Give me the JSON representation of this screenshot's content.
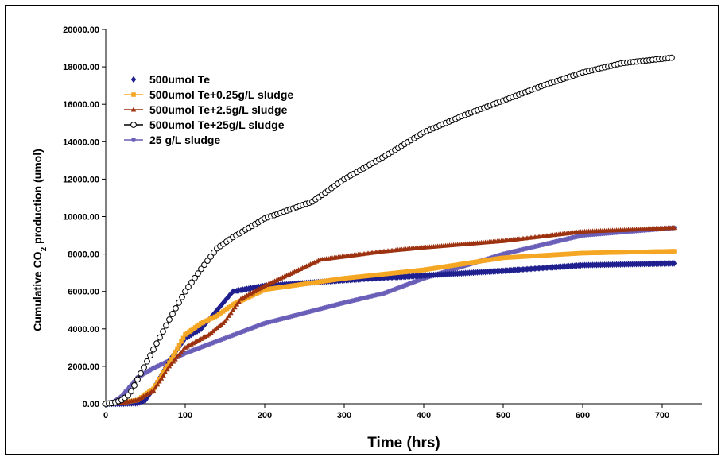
{
  "chart_data": {
    "type": "scatter",
    "xlabel": "Time (hrs)",
    "ylabel_parts": [
      "Cumulative CO",
      "2",
      " production (umol)"
    ],
    "xlim": [
      0,
      750
    ],
    "ylim": [
      0,
      20000
    ],
    "xticks": [
      0,
      100,
      200,
      300,
      400,
      500,
      600,
      700
    ],
    "yticks": [
      0,
      2000,
      4000,
      6000,
      8000,
      10000,
      12000,
      14000,
      16000,
      18000,
      20000
    ],
    "ytick_labels": [
      "0.00",
      "2000.00",
      "4000.00",
      "6000.00",
      "8000.00",
      "10000.00",
      "12000.00",
      "14000.00",
      "16000.00",
      "18000.00",
      "20000.00"
    ],
    "legend_position": "top-left",
    "grid": false,
    "series": [
      {
        "name": "500umol Te",
        "marker": "diamond",
        "color": "#1f1f8f",
        "x": [
          0,
          20,
          40,
          50,
          60,
          80,
          100,
          120,
          140,
          160,
          200,
          300,
          400,
          500,
          600,
          715
        ],
        "y": [
          0,
          0,
          30,
          200,
          800,
          2300,
          3500,
          4000,
          5000,
          6000,
          6300,
          6600,
          6850,
          7100,
          7400,
          7500
        ]
      },
      {
        "name": "500umol Te+0.25g/L sludge",
        "marker": "square",
        "color": "#f5a623",
        "x": [
          0,
          20,
          40,
          60,
          80,
          100,
          120,
          140,
          160,
          200,
          300,
          400,
          500,
          600,
          715
        ],
        "y": [
          0,
          50,
          200,
          800,
          2200,
          3700,
          4300,
          4700,
          5300,
          6100,
          6700,
          7150,
          7800,
          8050,
          8150
        ]
      },
      {
        "name": "500umol Te+2.5g/L sludge",
        "marker": "triangle",
        "color": "#9c3210",
        "x": [
          0,
          20,
          40,
          60,
          80,
          100,
          130,
          150,
          170,
          200,
          270,
          350,
          400,
          500,
          600,
          715
        ],
        "y": [
          0,
          50,
          200,
          700,
          2000,
          3000,
          3700,
          4400,
          5600,
          6300,
          7700,
          8150,
          8350,
          8700,
          9200,
          9400
        ]
      },
      {
        "name": "500umol Te+25g/L sludge",
        "marker": "circle",
        "color": "#000000",
        "x": [
          0,
          10,
          20,
          30,
          40,
          60,
          80,
          100,
          120,
          140,
          160,
          200,
          260,
          300,
          350,
          400,
          450,
          500,
          550,
          600,
          650,
          715
        ],
        "y": [
          0,
          50,
          200,
          500,
          1300,
          2900,
          4500,
          6000,
          7200,
          8300,
          8900,
          9900,
          10800,
          12000,
          13200,
          14500,
          15400,
          16200,
          17000,
          17700,
          18200,
          18500
        ]
      },
      {
        "name": "25 g/L sludge",
        "marker": "star",
        "color": "#6a5fb8",
        "x": [
          0,
          10,
          20,
          30,
          40,
          60,
          80,
          100,
          150,
          200,
          300,
          350,
          400,
          500,
          600,
          715
        ],
        "y": [
          0,
          100,
          400,
          900,
          1400,
          1900,
          2300,
          2700,
          3500,
          4300,
          5400,
          5900,
          6700,
          8000,
          9000,
          9400
        ]
      }
    ]
  }
}
